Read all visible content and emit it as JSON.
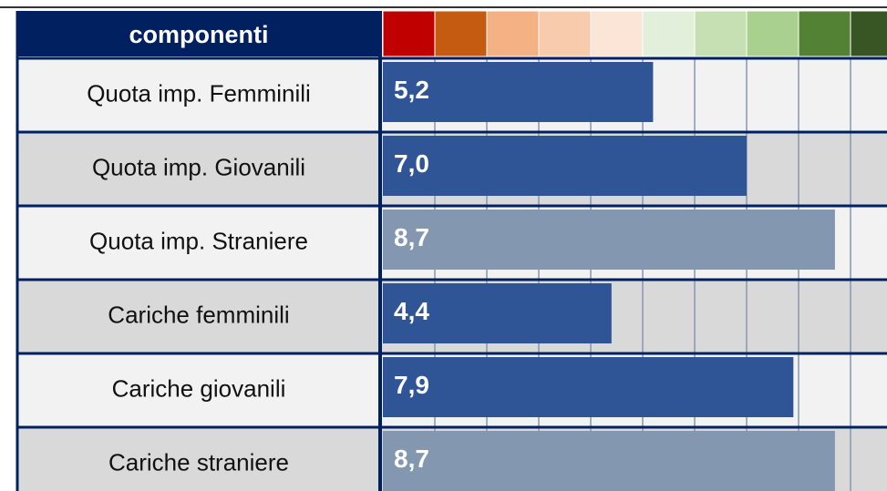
{
  "chart_data": {
    "type": "bar",
    "orientation": "horizontal",
    "header": "componenti",
    "categories": [
      "Quota imp. Femminili",
      "Quota imp. Giovanili",
      "Quota imp. Straniere",
      "Cariche femminili",
      "Cariche giovanili",
      "Cariche straniere"
    ],
    "values": [
      5.2,
      7.0,
      8.7,
      4.4,
      7.9,
      8.7
    ],
    "value_labels": [
      "5,2",
      "7,0",
      "8,7",
      "4,4",
      "7,9",
      "8,7"
    ],
    "colors": [
      "#2f5597",
      "#2f5597",
      "#8497b0",
      "#2f5597",
      "#2f5597",
      "#8497b0"
    ],
    "xlim": [
      0,
      10
    ],
    "scale_colors": [
      "#c00000",
      "#c55a11",
      "#f4b183",
      "#f8cbad",
      "#fbe5d6",
      "#e2efda",
      "#c6e0b4",
      "#a9d08e",
      "#548235",
      "#375623"
    ]
  }
}
